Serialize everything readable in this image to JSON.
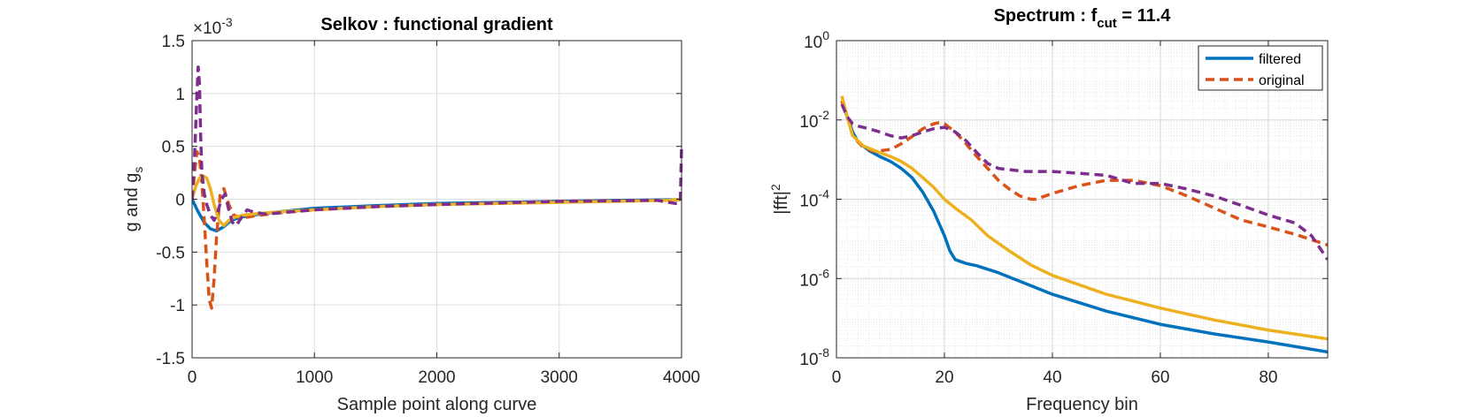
{
  "chart_data": [
    {
      "type": "line",
      "title": "Selkov : functional gradient",
      "xlabel": "Sample point along curve",
      "ylabel": "g and g",
      "ylabel_subscript": "s",
      "exponent_label": "×10",
      "exponent_value": "-3",
      "xlim": [
        0,
        4000
      ],
      "ylim": [
        -1.5,
        1.5
      ],
      "xticks": [
        "0",
        "1000",
        "2000",
        "3000",
        "4000"
      ],
      "yticks": [
        "-1.5",
        "-1",
        "-0.5",
        "0",
        "0.5",
        "1",
        "1.5"
      ],
      "grid": true,
      "series": [
        {
          "color": "#0072BD",
          "style": "solid",
          "x": [
            0,
            50,
            100,
            150,
            200,
            260,
            320,
            400,
            500,
            700,
            1000,
            1500,
            2000,
            2500,
            3000,
            3500,
            3900,
            3970,
            4000
          ],
          "y": [
            0,
            -0.12,
            -0.22,
            -0.28,
            -0.3,
            -0.26,
            -0.2,
            -0.17,
            -0.15,
            -0.12,
            -0.085,
            -0.06,
            -0.04,
            -0.03,
            -0.02,
            -0.01,
            -0.005,
            -0.005,
            0
          ]
        },
        {
          "color": "#D95319",
          "style": "dashed",
          "x": [
            0,
            20,
            40,
            60,
            80,
            100,
            120,
            140,
            160,
            180,
            200,
            230,
            260,
            300,
            340,
            400,
            500,
            700,
            1000,
            1500,
            2000,
            3000,
            3900,
            4000
          ],
          "y": [
            0,
            0.25,
            0.45,
            0.4,
            0.15,
            -0.2,
            -0.6,
            -0.95,
            -1.03,
            -0.75,
            -0.35,
            0.05,
            0.1,
            -0.05,
            -0.15,
            -0.18,
            -0.16,
            -0.13,
            -0.1,
            -0.07,
            -0.05,
            -0.02,
            -0.01,
            0
          ]
        },
        {
          "color": "#EDB120",
          "style": "solid",
          "x": [
            0,
            30,
            60,
            90,
            120,
            150,
            180,
            220,
            260,
            300,
            350,
            420,
            500,
            700,
            1000,
            1500,
            2000,
            3000,
            3900,
            4000
          ],
          "y": [
            0,
            0.12,
            0.2,
            0.22,
            0.2,
            0.1,
            -0.05,
            -0.2,
            -0.25,
            -0.2,
            -0.17,
            -0.15,
            -0.14,
            -0.12,
            -0.1,
            -0.07,
            -0.05,
            -0.03,
            -0.01,
            0
          ]
        },
        {
          "color": "#7E2F8E",
          "style": "dashed",
          "x": [
            0,
            20,
            40,
            50,
            60,
            70,
            80,
            100,
            120,
            150,
            180,
            210,
            240,
            270,
            300,
            330,
            360,
            400,
            450,
            500,
            600,
            700,
            1000,
            1500,
            2000,
            3000,
            3800,
            3950,
            3990,
            4000
          ],
          "y": [
            0,
            0.4,
            1.0,
            1.25,
            1.1,
            0.6,
            0.25,
            0.05,
            -0.05,
            -0.15,
            -0.2,
            -0.12,
            0.0,
            0.05,
            -0.1,
            -0.22,
            -0.25,
            -0.18,
            -0.1,
            -0.12,
            -0.14,
            -0.13,
            -0.1,
            -0.07,
            -0.05,
            -0.02,
            -0.01,
            -0.04,
            -0.03,
            0.5
          ]
        }
      ]
    },
    {
      "type": "line",
      "title": "Spectrum : f",
      "title_subscript": "cut",
      "title_suffix": " = 11.4",
      "xlabel": "Frequency bin",
      "ylabel": "|fft|",
      "ylabel_superscript": "2",
      "xlim": [
        0,
        91
      ],
      "ylim": [
        1e-08,
        1
      ],
      "yscale": "log",
      "xticks": [
        "0",
        "20",
        "40",
        "60",
        "80"
      ],
      "yticks": [
        {
          "base": "10",
          "exp": "-8"
        },
        {
          "base": "10",
          "exp": "-6"
        },
        {
          "base": "10",
          "exp": "-4"
        },
        {
          "base": "10",
          "exp": "-2"
        },
        {
          "base": "10",
          "exp": "0"
        }
      ],
      "grid": true,
      "minor_grid": true,
      "legend": {
        "position": "top-right",
        "entries": [
          "filtered",
          "original"
        ]
      },
      "series": [
        {
          "name": "filtered",
          "color": "#0072BD",
          "style": "solid",
          "x": [
            1,
            2,
            3,
            4,
            6,
            8,
            10,
            12,
            14,
            16,
            18,
            20,
            21,
            22,
            24,
            26,
            30,
            35,
            40,
            50,
            60,
            70,
            80,
            91
          ],
          "y": [
            0.03,
            0.012,
            0.005,
            0.0028,
            0.0017,
            0.0012,
            0.0009,
            0.0006,
            0.00035,
            0.00015,
            5e-05,
            1.2e-05,
            5e-06,
            3e-06,
            2.4e-06,
            2.1e-06,
            1.4e-06,
            7.5e-07,
            4e-07,
            1.5e-07,
            7e-08,
            4e-08,
            2.5e-08,
            1.4e-08
          ]
        },
        {
          "name": "original",
          "color": "#D95319",
          "style": "dashed",
          "x": [
            1,
            2,
            3,
            5,
            7,
            10,
            12,
            14,
            16,
            18,
            19,
            20,
            22,
            24,
            26,
            28,
            30,
            32,
            34,
            36,
            37,
            40,
            45,
            50,
            55,
            60,
            65,
            70,
            75,
            80,
            85,
            91
          ],
          "y": [
            0.03,
            0.012,
            0.004,
            0.002,
            0.0016,
            0.0018,
            0.0025,
            0.0038,
            0.006,
            0.008,
            0.0085,
            0.008,
            0.005,
            0.0025,
            0.0012,
            0.0006,
            0.0003,
            0.00018,
            0.00012,
            0.0001,
            0.0001,
            0.00014,
            0.00022,
            0.0003,
            0.0003,
            0.00022,
            0.00012,
            6e-05,
            3e-05,
            2e-05,
            1.3e-05,
            7e-06
          ]
        },
        {
          "color": "#EDB120",
          "style": "solid",
          "x": [
            1,
            2,
            3,
            5,
            8,
            10,
            12,
            14,
            16,
            18,
            20,
            22,
            25,
            28,
            32,
            36,
            40,
            50,
            60,
            70,
            80,
            91
          ],
          "y": [
            0.04,
            0.012,
            0.004,
            0.0022,
            0.0015,
            0.0012,
            0.0009,
            0.0006,
            0.00035,
            0.0002,
            0.0001,
            6e-05,
            3e-05,
            1.2e-05,
            5e-06,
            2.2e-06,
            1.2e-06,
            4e-07,
            1.8e-07,
            9e-08,
            5e-08,
            3e-08
          ]
        },
        {
          "color": "#7E2F8E",
          "style": "dashed",
          "x": [
            1,
            2,
            3,
            4,
            6,
            8,
            10,
            12,
            14,
            16,
            18,
            20,
            22,
            24,
            26,
            28,
            30,
            35,
            40,
            45,
            50,
            55,
            60,
            65,
            70,
            75,
            80,
            85,
            88,
            91
          ],
          "y": [
            0.025,
            0.012,
            0.008,
            0.007,
            0.006,
            0.005,
            0.004,
            0.0035,
            0.004,
            0.005,
            0.006,
            0.0065,
            0.005,
            0.003,
            0.0015,
            0.0008,
            0.0006,
            0.0005,
            0.0005,
            0.00045,
            0.0004,
            0.00025,
            0.00025,
            0.00018,
            0.00012,
            7e-05,
            4e-05,
            2.5e-05,
            1.2e-05,
            3e-06
          ]
        }
      ]
    }
  ]
}
